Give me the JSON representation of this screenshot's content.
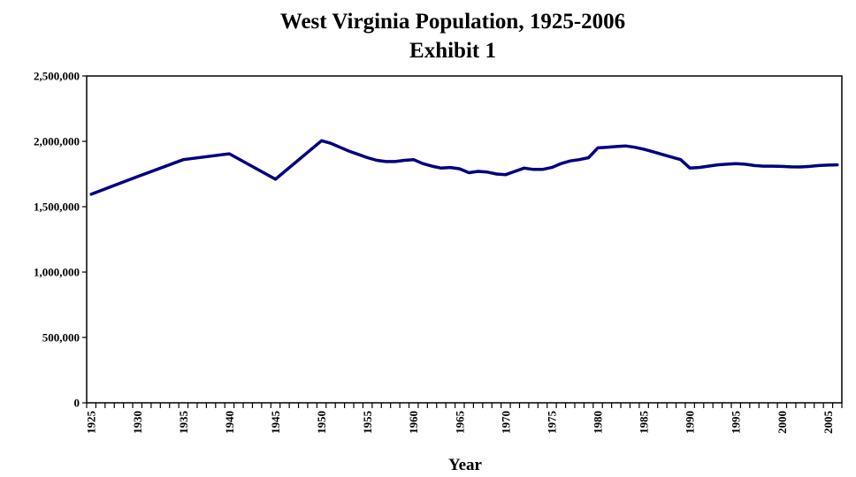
{
  "chart_data": {
    "type": "line",
    "title": "West Virginia Population, 1925-2006",
    "subtitle": "Exhibit 1",
    "xlabel": "Year",
    "ylabel": "",
    "xlim": [
      1925,
      2006
    ],
    "ylim": [
      0,
      2500000
    ],
    "grid": false,
    "legend": "none",
    "y_ticks": [
      0,
      500000,
      1000000,
      1500000,
      2000000,
      2500000
    ],
    "y_tick_labels": [
      "0",
      "500,000",
      "1,000,000",
      "1,500,000",
      "2,000,000",
      "2,500,000"
    ],
    "x_tick_labels": [
      "1925",
      "1930",
      "1935",
      "1940",
      "1945",
      "1950",
      "1955",
      "1960",
      "1965",
      "1970",
      "1975",
      "1980",
      "1985",
      "1990",
      "1995",
      "2000",
      "2005"
    ],
    "line_color": "#000080",
    "series": [
      {
        "x": [
          1925,
          1930,
          1935,
          1940,
          1945,
          1950,
          1951,
          1952,
          1953,
          1954,
          1955,
          1956,
          1957,
          1958,
          1959,
          1960,
          1961,
          1962,
          1963,
          1964,
          1965,
          1966,
          1967,
          1968,
          1969,
          1970,
          1971,
          1972,
          1973,
          1974,
          1975,
          1976,
          1977,
          1978,
          1979,
          1980,
          1981,
          1982,
          1983,
          1984,
          1985,
          1986,
          1987,
          1988,
          1989,
          1990,
          1991,
          1992,
          1993,
          1994,
          1995,
          1996,
          1997,
          1998,
          1999,
          2000,
          2001,
          2002,
          2003,
          2004,
          2005,
          2006
        ],
        "values": [
          1595000,
          1730000,
          1860000,
          1905000,
          1710000,
          2005000,
          1985000,
          1955000,
          1925000,
          1900000,
          1875000,
          1855000,
          1845000,
          1845000,
          1855000,
          1860000,
          1830000,
          1810000,
          1795000,
          1800000,
          1790000,
          1760000,
          1770000,
          1765000,
          1750000,
          1745000,
          1770000,
          1795000,
          1785000,
          1785000,
          1800000,
          1830000,
          1850000,
          1860000,
          1875000,
          1950000,
          1955000,
          1960000,
          1965000,
          1955000,
          1940000,
          1920000,
          1900000,
          1880000,
          1860000,
          1795000,
          1800000,
          1810000,
          1820000,
          1825000,
          1830000,
          1825000,
          1815000,
          1810000,
          1810000,
          1808000,
          1805000,
          1804000,
          1808000,
          1815000,
          1818000,
          1820000
        ]
      }
    ]
  }
}
